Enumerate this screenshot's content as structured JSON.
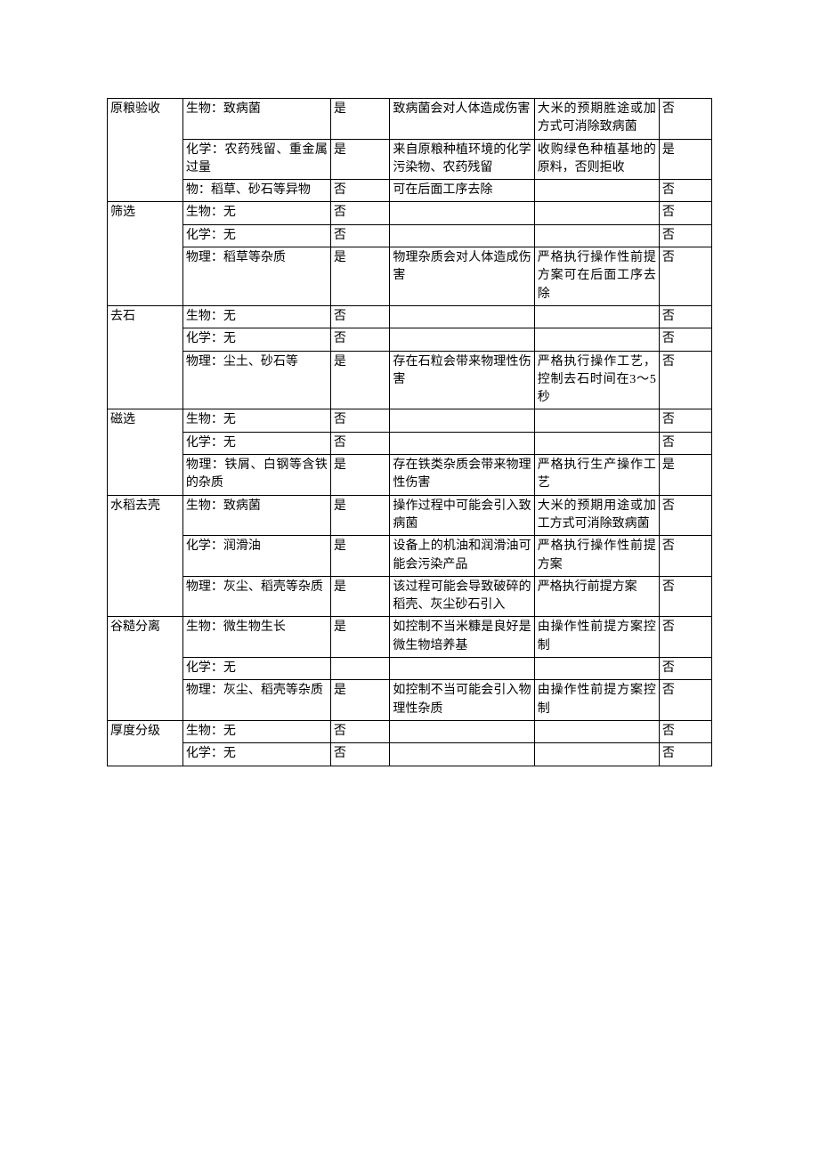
{
  "table": {
    "rows": [
      {
        "c1": "原粮验收",
        "c2": "生物：致病菌",
        "c3": "是",
        "c4": "致病菌会对人体造成伤害",
        "c5": "大米的预期胜途或加方式可消除致病菌",
        "c6": "否",
        "span1": 3
      },
      {
        "c1": "",
        "c2": "化学：农药残留、重金属过量",
        "c3": "是",
        "c4": "来自原粮种植环境的化学污染物、农药残留",
        "c5": "收购绿色种植基地的原料，否则拒收",
        "c6": "是"
      },
      {
        "c1": "",
        "c2": "物：稻草、砂石等异物",
        "c3": "否",
        "c4": "可在后面工序去除",
        "c5": "",
        "c6": "否"
      },
      {
        "c1": "筛选",
        "c2": "生物：无",
        "c3": "否",
        "c4": "",
        "c5": "",
        "c6": "否",
        "span1": 3
      },
      {
        "c1": "",
        "c2": "化学：无",
        "c3": "否",
        "c4": "",
        "c5": "",
        "c6": "否"
      },
      {
        "c1": "",
        "c2": "物理：稻草等杂质",
        "c3": "是",
        "c4": "物理杂质会对人体造成伤害",
        "c5": "严格执行操作性前提方案可在后面工序去除",
        "c6": "否"
      },
      {
        "c1": "去石",
        "c2": "生物：无",
        "c3": "否",
        "c4": "",
        "c5": "",
        "c6": "否",
        "span1": 3
      },
      {
        "c1": "",
        "c2": "化学：无",
        "c3": "否",
        "c4": "",
        "c5": "",
        "c6": "否"
      },
      {
        "c1": "",
        "c2": "物理：尘土、砂石等",
        "c3": "是",
        "c4": "存在石粒会带来物理性伤害",
        "c5": "严格执行操作工艺，控制去石时间在3～5秒",
        "c6": "否"
      },
      {
        "c1": "磁选",
        "c2": "生物：无",
        "c3": "否",
        "c4": "",
        "c5": "",
        "c6": "否",
        "span1": 3
      },
      {
        "c1": "",
        "c2": "化学：无",
        "c3": "否",
        "c4": "",
        "c5": "",
        "c6": "否"
      },
      {
        "c1": "",
        "c2": "物理：铁屑、白钢等含铁的杂质",
        "c3": "是",
        "c4": "存在铁类杂质会带来物理性伤害",
        "c5": "严格执行生产操作工艺",
        "c6": "是"
      },
      {
        "c1": "水稻去壳",
        "c2": "生物：致病菌",
        "c3": "是",
        "c4": "操作过程中可能会引入致病菌",
        "c5": "大米的预期用途或加工方式可消除致病菌",
        "c6": "否",
        "span1": 3
      },
      {
        "c1": "",
        "c2": "化学：润滑油",
        "c3": "是",
        "c4": "设备上的机油和润滑油可能会污染产品",
        "c5": "严格执行操作性前提方案",
        "c6": "否"
      },
      {
        "c1": "",
        "c2": "物理：灰尘、稻壳等杂质",
        "c3": "是",
        "c4": "该过程可能会导致破碎的稻壳、灰尘砂石引入",
        "c5": "严格执行前提方案",
        "c6": "否"
      },
      {
        "c1": "谷糙分离",
        "c2": "生物：微生物生长",
        "c3": "是",
        "c4": "如控制不当米糠是良好是微生物培养基",
        "c5": "由操作性前提方案控制",
        "c6": "否",
        "span1": 3
      },
      {
        "c1": "",
        "c2": "化学：无",
        "c3": "",
        "c4": "",
        "c5": "",
        "c6": "否"
      },
      {
        "c1": "",
        "c2": "物理：灰尘、稻壳等杂质",
        "c3": "是",
        "c4": "如控制不当可能会引入物理性杂质",
        "c5": "由操作性前提方案控制",
        "c6": "否"
      },
      {
        "c1": "厚度分级",
        "c2": "生物：无",
        "c3": "否",
        "c4": "",
        "c5": "",
        "c6": "否",
        "span1": 2
      },
      {
        "c1": "",
        "c2": "化学：无",
        "c3": "否",
        "c4": "",
        "c5": "",
        "c6": "否"
      }
    ]
  }
}
